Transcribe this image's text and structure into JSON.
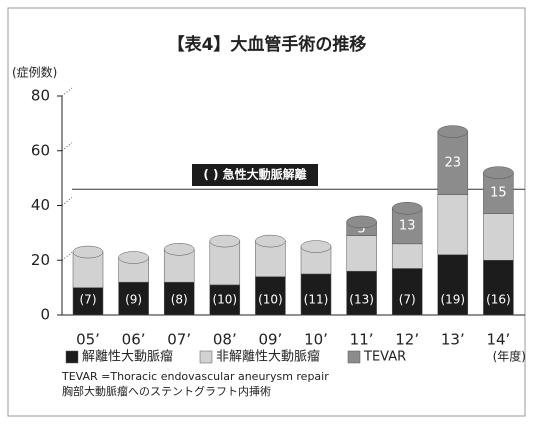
{
  "chart_data": {
    "type": "bar",
    "stacked": true,
    "title": "【表4】大血管手術の推移",
    "y_label": "(症例数)",
    "x_label": "(年度)",
    "categories": [
      "05’",
      "06’",
      "07’",
      "08’",
      "09’",
      "10’",
      "11’",
      "12’",
      "13’",
      "14’"
    ],
    "series": [
      {
        "name": "解離性大動脈瘤",
        "color": "#1c1c1c",
        "values": [
          10,
          12,
          12,
          11,
          14,
          15,
          16,
          17,
          22,
          20
        ]
      },
      {
        "name": "非解離性大動脈瘤",
        "color": "#d2d2d2",
        "values": [
          13,
          9,
          12,
          16,
          13,
          10,
          13,
          9,
          22,
          17
        ]
      },
      {
        "name": "TEVAR",
        "color": "#8c8c8c",
        "values": [
          0,
          0,
          0,
          0,
          0,
          0,
          5,
          13,
          23,
          15
        ]
      }
    ],
    "annotations": [
      "(7)",
      "(9)",
      "(8)",
      "(10)",
      "(10)",
      "(11)",
      "(13)",
      "(7)",
      "(19)",
      "(16)"
    ],
    "annotation_legend": "(  ) 急性大動脈解離",
    "reference_line": 43,
    "notes": [
      "TEVAR =Thoracic endovascular aneurysm repair",
      "胸部大動脈瘤へのステントグラフト内挿術"
    ],
    "ylim": [
      0,
      80
    ],
    "yticks": [
      0,
      20,
      40,
      60,
      80
    ]
  }
}
